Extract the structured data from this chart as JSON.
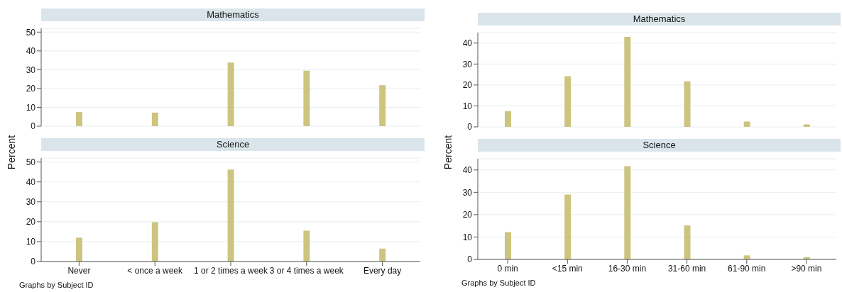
{
  "chart_data": [
    {
      "type": "bar",
      "title": "Mathematics",
      "ylabel": "Percent",
      "categories": [
        null,
        null,
        null,
        null,
        null
      ],
      "values": [
        7.5,
        7.2,
        33.8,
        29.5,
        21.8
      ],
      "color": "#cdc47f",
      "ylim": [
        0,
        52
      ],
      "yticks": [
        0,
        10,
        20,
        30,
        40,
        50
      ],
      "grid": "y",
      "legend": false,
      "tick_labels": "y"
    },
    {
      "type": "bar",
      "title": "Science",
      "categories": [
        "Never",
        "< once a week",
        "1 or 2 times a week",
        "3 or 4 times a week",
        "Every day"
      ],
      "values": [
        12,
        19.8,
        46.2,
        15.5,
        6.5
      ],
      "color": "#cdc47f",
      "ylim": [
        0,
        52
      ],
      "yticks": [
        0,
        10,
        20,
        30,
        40,
        50
      ],
      "grid": "y",
      "legend": false,
      "annotations": [
        "Graphs by Subject ID"
      ]
    },
    {
      "type": "bar",
      "title": "Mathematics",
      "ylabel": "Percent",
      "categories": [
        null,
        null,
        null,
        null,
        null,
        null
      ],
      "values": [
        7.5,
        24.2,
        43,
        21.7,
        2.5,
        1.2
      ],
      "color": "#cdc47f",
      "ylim": [
        0,
        45
      ],
      "yticks": [
        0,
        10,
        20,
        30,
        40
      ],
      "grid": "y",
      "legend": false,
      "tick_labels": "y"
    },
    {
      "type": "bar",
      "title": "Science",
      "categories": [
        "0 min",
        "<15 min",
        "16-30 min",
        "31-60 min",
        "61-90 min",
        ">90 min"
      ],
      "values": [
        12.2,
        29,
        41.7,
        15.2,
        1.8,
        1.0
      ],
      "color": "#cdc47f",
      "ylim": [
        0,
        45
      ],
      "yticks": [
        0,
        10,
        20,
        30,
        40
      ],
      "grid": "y",
      "legend": false,
      "annotations": [
        "Graphs by Subject ID"
      ]
    }
  ]
}
